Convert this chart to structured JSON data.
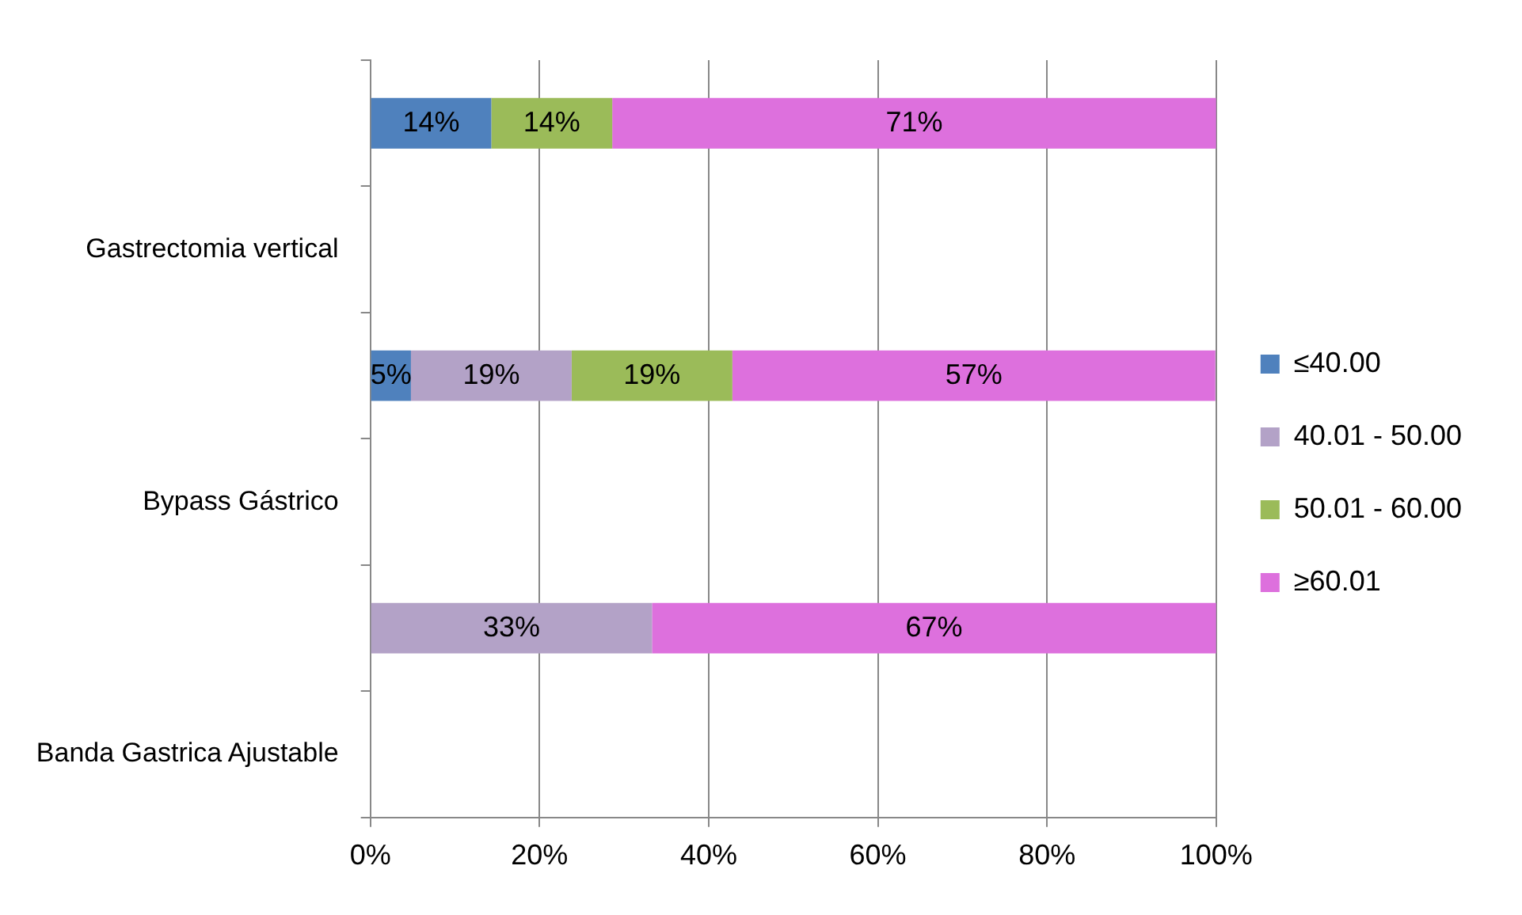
{
  "chart_data": {
    "type": "bar",
    "orientation": "horizontal",
    "stacked": true,
    "categories": [
      null,
      "Gastrectomia vertical",
      null,
      "Bypass Gástrico",
      null,
      "Banda Gastrica Ajustable"
    ],
    "series": [
      {
        "name": "≤40.00",
        "color": "#4f81bd",
        "values": [
          14.3,
          null,
          4.8,
          null,
          null,
          null
        ],
        "value_labels": [
          "14%",
          null,
          "5%",
          null,
          null,
          null
        ]
      },
      {
        "name": "40.01 - 50.00",
        "color": "#b3a2c7",
        "values": [
          null,
          null,
          19.0,
          null,
          33.3,
          null
        ],
        "value_labels": [
          null,
          null,
          "19%",
          null,
          "33%",
          null
        ]
      },
      {
        "name": "50.01 - 60.00",
        "color": "#9bbb59",
        "values": [
          14.3,
          null,
          19.0,
          null,
          null,
          null
        ],
        "value_labels": [
          "14%",
          null,
          "19%",
          null,
          null,
          null
        ]
      },
      {
        "name": "≥60.01",
        "color": "#dd70dd",
        "values": [
          71.4,
          null,
          57.1,
          null,
          66.7,
          null
        ],
        "value_labels": [
          "71%",
          null,
          "57%",
          null,
          "67%",
          null
        ]
      }
    ],
    "xlim": [
      0,
      100
    ],
    "xticks": [
      {
        "value": 0,
        "label": "0%"
      },
      {
        "value": 20,
        "label": "20%"
      },
      {
        "value": 40,
        "label": "40%"
      },
      {
        "value": 60,
        "label": "60%"
      },
      {
        "value": 80,
        "label": "80%"
      },
      {
        "value": 100,
        "label": "100%"
      }
    ],
    "grid": "x",
    "legend": "right"
  }
}
